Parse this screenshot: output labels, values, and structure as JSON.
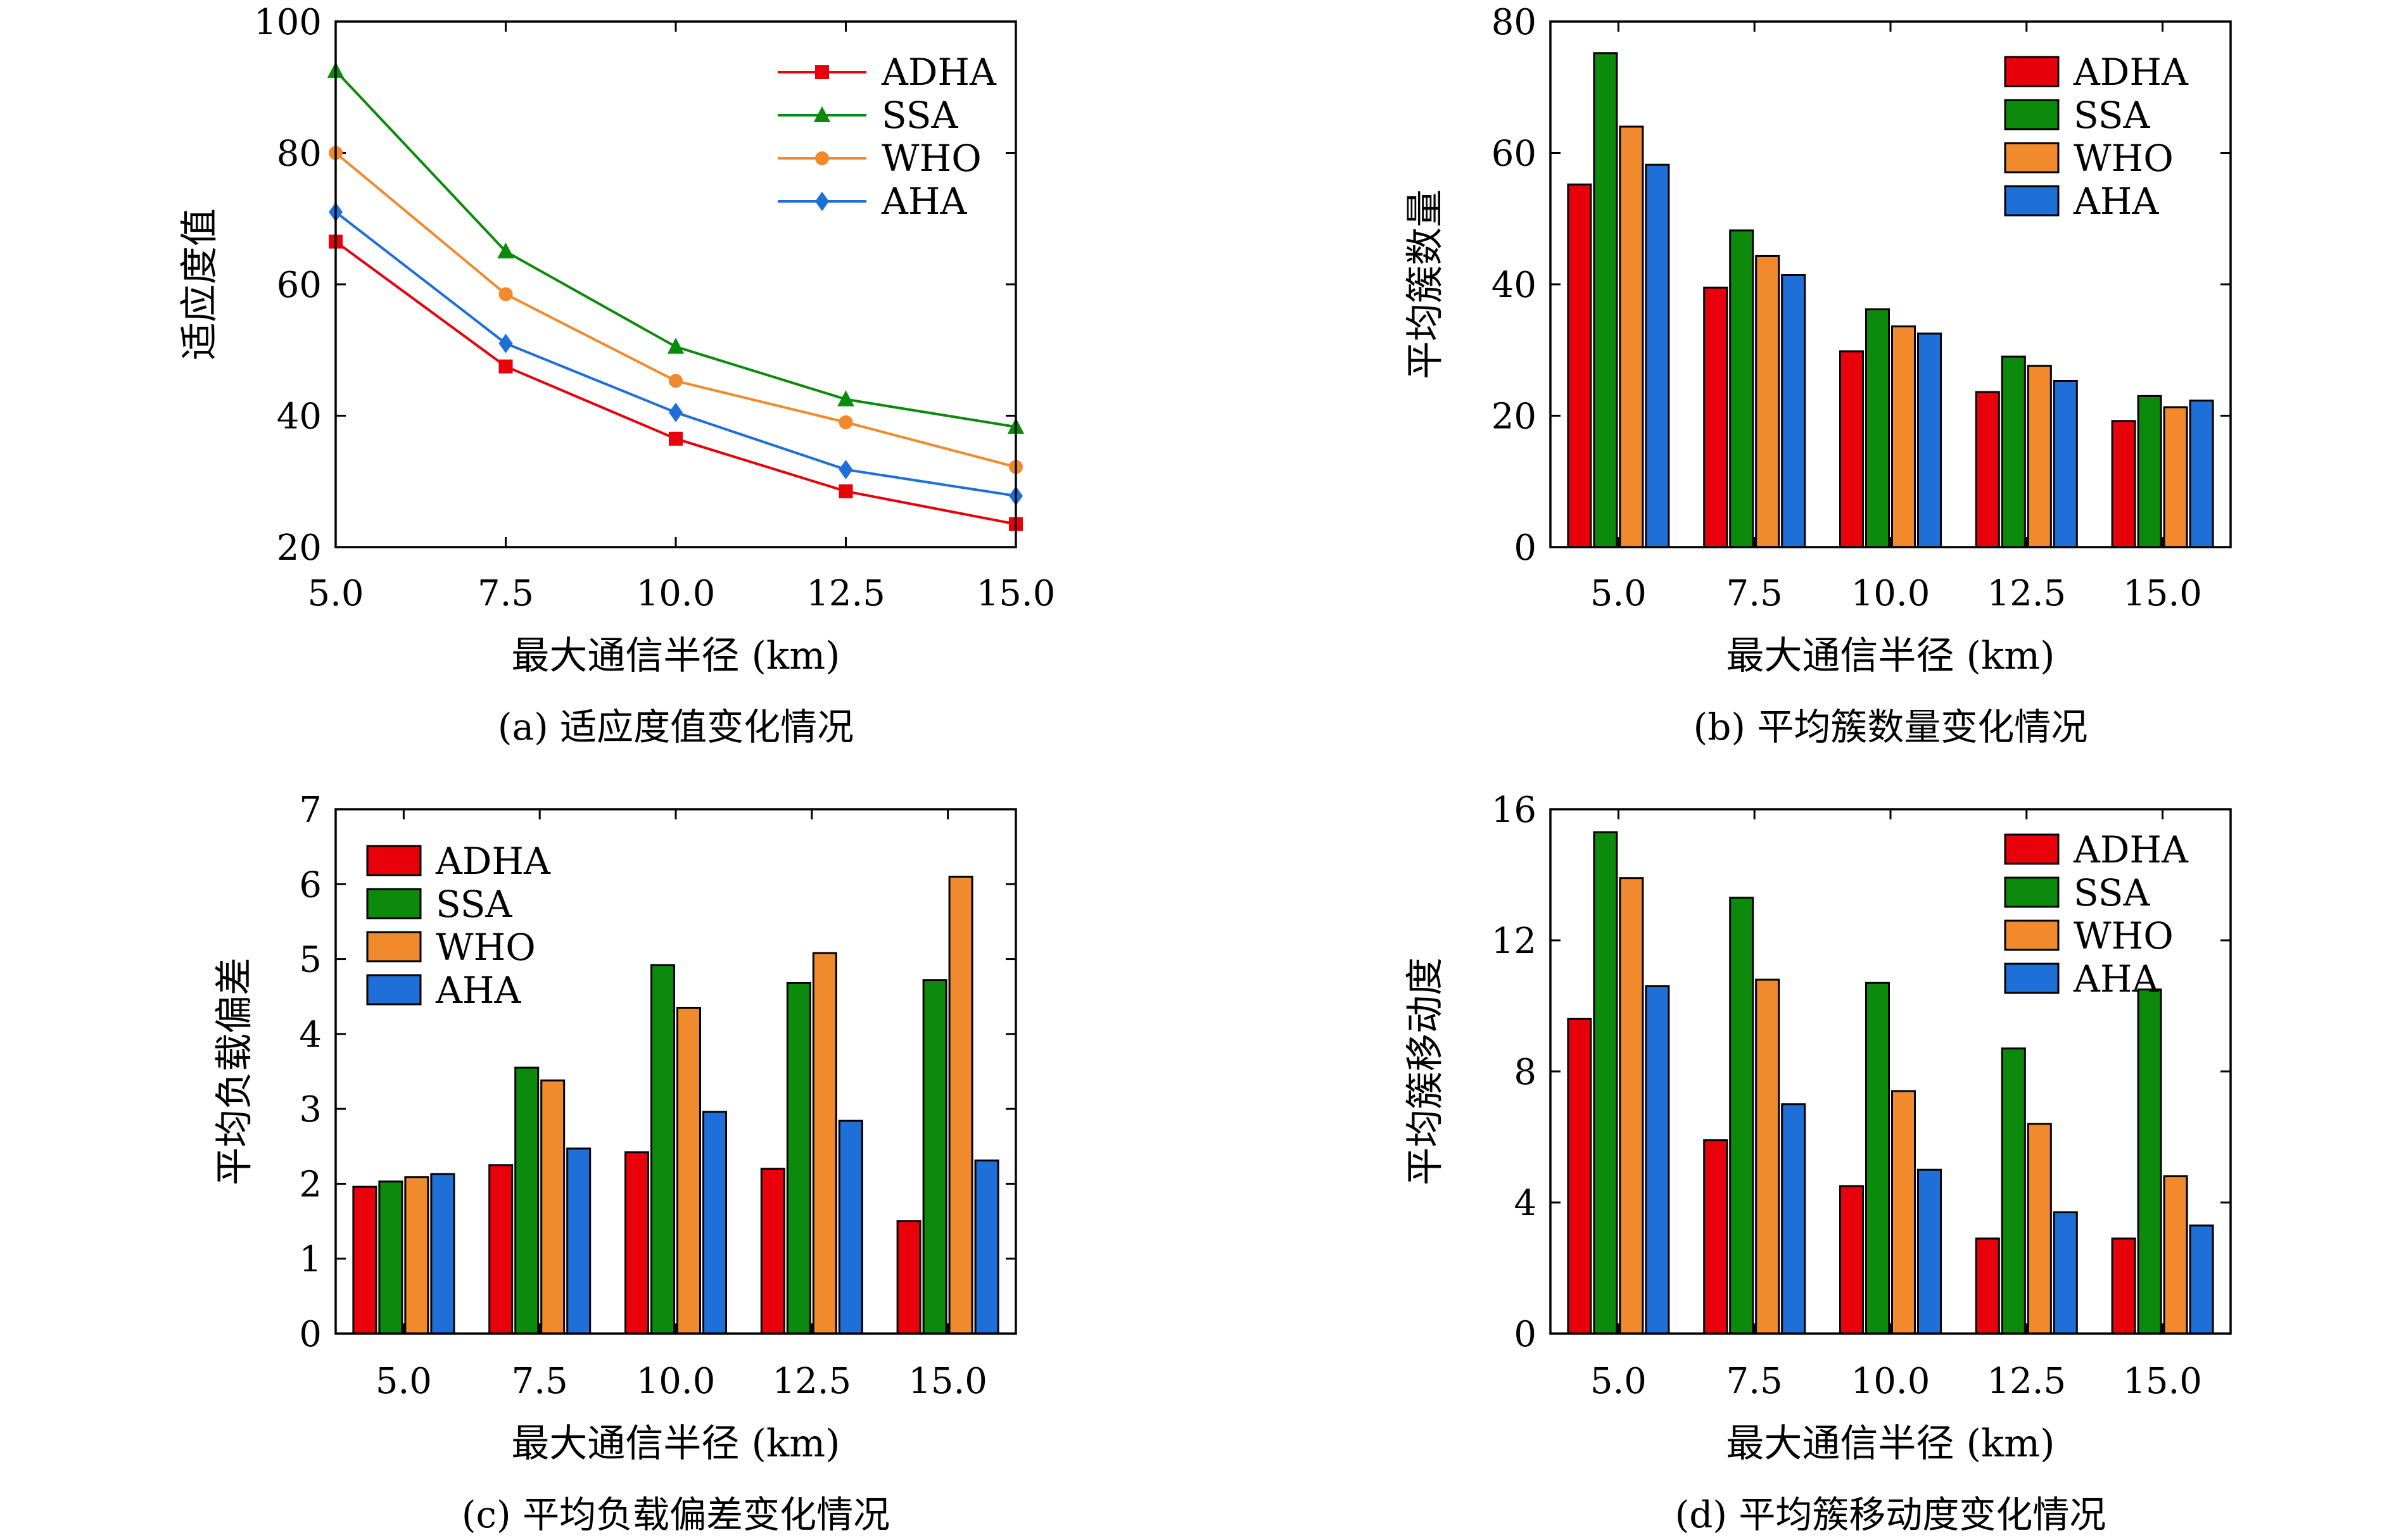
{
  "colors": {
    "ADHA": "#e8000b",
    "SSA": "#0b8a0b",
    "WHO": "#f08a2c",
    "AHA": "#1f6fd8"
  },
  "chart_data": [
    {
      "id": "a",
      "type": "line",
      "caption": "(a) 适应度值变化情况",
      "xlabel": "最大通信半径 (km)",
      "ylabel": "适应度值",
      "x": [
        "5.0",
        "7.5",
        "10.0",
        "12.5",
        "15.0"
      ],
      "ylim": [
        20,
        100
      ],
      "yticks": [
        "20",
        "40",
        "60",
        "80",
        "100"
      ],
      "legend_position": "top-right",
      "series": [
        {
          "name": "ADHA",
          "marker": "square",
          "values": [
            66.5,
            47.5,
            36.5,
            28.5,
            23.5
          ]
        },
        {
          "name": "SSA",
          "marker": "triangle",
          "values": [
            92.5,
            65.0,
            50.5,
            42.5,
            38.3
          ]
        },
        {
          "name": "WHO",
          "marker": "circle",
          "values": [
            80.0,
            58.5,
            45.3,
            39.0,
            32.2
          ]
        },
        {
          "name": "AHA",
          "marker": "diamond",
          "values": [
            71.0,
            51.0,
            40.5,
            31.8,
            27.8
          ]
        }
      ]
    },
    {
      "id": "b",
      "type": "bar",
      "caption": "(b) 平均簇数量变化情况",
      "xlabel": "最大通信半径 (km)",
      "ylabel": "平均簇数量",
      "categories": [
        "5.0",
        "7.5",
        "10.0",
        "12.5",
        "15.0"
      ],
      "ylim": [
        0,
        80
      ],
      "yticks": [
        "0",
        "20",
        "40",
        "60",
        "80"
      ],
      "legend_position": "top-right",
      "series": [
        {
          "name": "ADHA",
          "values": [
            55.2,
            39.5,
            29.8,
            23.6,
            19.2
          ]
        },
        {
          "name": "SSA",
          "values": [
            75.2,
            48.2,
            36.2,
            29.0,
            23.0
          ]
        },
        {
          "name": "WHO",
          "values": [
            64.0,
            44.3,
            33.6,
            27.6,
            21.3
          ]
        },
        {
          "name": "AHA",
          "values": [
            58.2,
            41.4,
            32.5,
            25.3,
            22.3
          ]
        }
      ]
    },
    {
      "id": "c",
      "type": "bar",
      "caption": "(c) 平均负载偏差变化情况",
      "xlabel": "最大通信半径 (km)",
      "ylabel": "平均负载偏差",
      "categories": [
        "5.0",
        "7.5",
        "10.0",
        "12.5",
        "15.0"
      ],
      "ylim": [
        0,
        7
      ],
      "yticks": [
        "0",
        "1",
        "2",
        "3",
        "4",
        "5",
        "6",
        "7"
      ],
      "legend_position": "top-left",
      "series": [
        {
          "name": "ADHA",
          "values": [
            1.96,
            2.25,
            2.42,
            2.2,
            1.5
          ]
        },
        {
          "name": "SSA",
          "values": [
            2.03,
            3.55,
            4.92,
            4.68,
            4.72
          ]
        },
        {
          "name": "WHO",
          "values": [
            2.09,
            3.38,
            4.35,
            5.08,
            6.1
          ]
        },
        {
          "name": "AHA",
          "values": [
            2.13,
            2.47,
            2.96,
            2.84,
            2.31
          ]
        }
      ]
    },
    {
      "id": "d",
      "type": "bar",
      "caption": "(d) 平均簇移动度变化情况",
      "xlabel": "最大通信半径 (km)",
      "ylabel": "平均簇移动度",
      "categories": [
        "5.0",
        "7.5",
        "10.0",
        "12.5",
        "15.0"
      ],
      "ylim": [
        0,
        16
      ],
      "yticks": [
        "0",
        "4",
        "8",
        "12",
        "16"
      ],
      "legend_position": "top-right",
      "series": [
        {
          "name": "ADHA",
          "values": [
            9.6,
            5.9,
            4.5,
            2.9,
            2.9
          ]
        },
        {
          "name": "SSA",
          "values": [
            15.3,
            13.3,
            10.7,
            8.7,
            10.5
          ]
        },
        {
          "name": "WHO",
          "values": [
            13.9,
            10.8,
            7.4,
            6.4,
            4.8
          ]
        },
        {
          "name": "AHA",
          "values": [
            10.6,
            7.0,
            5.0,
            3.7,
            3.3
          ]
        }
      ]
    }
  ]
}
